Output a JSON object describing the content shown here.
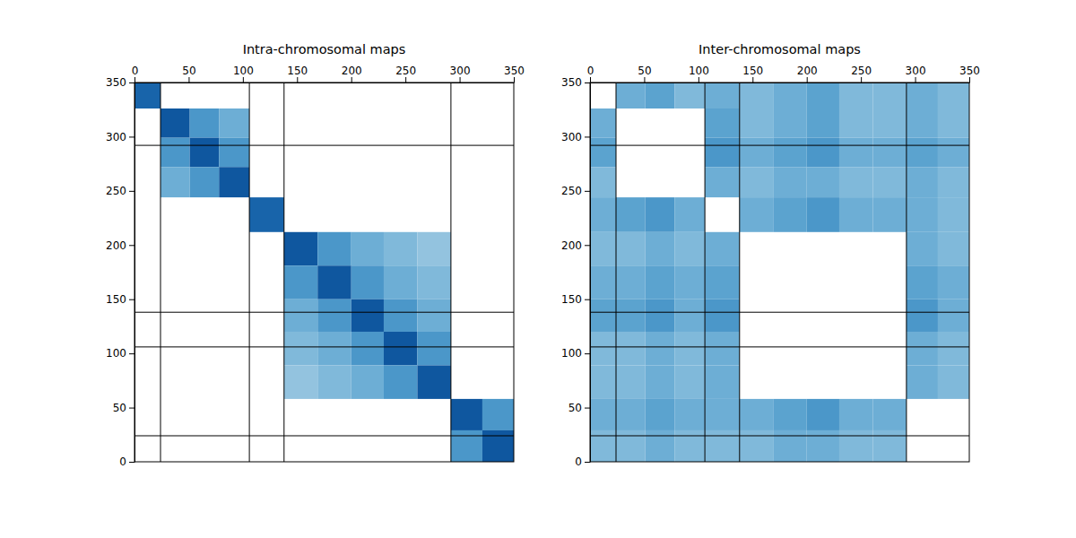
{
  "chart_data": [
    {
      "type": "heatmap",
      "title": "Intra-chromosomal maps",
      "xlim": [
        0,
        350
      ],
      "ylim": [
        0,
        350
      ],
      "xticks": [
        0,
        50,
        100,
        150,
        200,
        250,
        300,
        350
      ],
      "yticks": [
        0,
        50,
        100,
        150,
        200,
        250,
        300,
        350
      ],
      "zlim": [
        0,
        1
      ],
      "x_edges": [
        0,
        24,
        51,
        78,
        106,
        138,
        169,
        200,
        230,
        261,
        292,
        321,
        350
      ],
      "y_edges": [
        350,
        326,
        299,
        272,
        244,
        212,
        181,
        150,
        120,
        89,
        58,
        29,
        0
      ],
      "boundaries": [
        24,
        106,
        138,
        292
      ],
      "cells": [
        [
          0.8,
          null,
          null,
          null,
          null,
          null,
          null,
          null,
          null,
          null,
          null,
          null
        ],
        [
          null,
          0.85,
          0.6,
          0.5,
          null,
          null,
          null,
          null,
          null,
          null,
          null,
          null
        ],
        [
          null,
          0.6,
          0.85,
          0.6,
          null,
          null,
          null,
          null,
          null,
          null,
          null,
          null
        ],
        [
          null,
          0.5,
          0.6,
          0.85,
          null,
          null,
          null,
          null,
          null,
          null,
          null,
          null
        ],
        [
          null,
          null,
          null,
          null,
          0.8,
          null,
          null,
          null,
          null,
          null,
          null,
          null
        ],
        [
          null,
          null,
          null,
          null,
          null,
          0.85,
          0.6,
          0.5,
          0.45,
          0.4,
          null,
          null
        ],
        [
          null,
          null,
          null,
          null,
          null,
          0.6,
          0.85,
          0.6,
          0.5,
          0.45,
          null,
          null
        ],
        [
          null,
          null,
          null,
          null,
          null,
          0.5,
          0.6,
          0.85,
          0.6,
          0.5,
          null,
          null
        ],
        [
          null,
          null,
          null,
          null,
          null,
          0.45,
          0.5,
          0.6,
          0.85,
          0.6,
          null,
          null
        ],
        [
          null,
          null,
          null,
          null,
          null,
          0.4,
          0.45,
          0.5,
          0.6,
          0.85,
          null,
          null
        ],
        [
          null,
          null,
          null,
          null,
          null,
          null,
          null,
          null,
          null,
          null,
          0.85,
          0.6
        ],
        [
          null,
          null,
          null,
          null,
          null,
          null,
          null,
          null,
          null,
          null,
          0.6,
          0.85
        ]
      ]
    },
    {
      "type": "heatmap",
      "title": "Inter-chromosomal maps",
      "xlim": [
        0,
        350
      ],
      "ylim": [
        0,
        350
      ],
      "xticks": [
        0,
        50,
        100,
        150,
        200,
        250,
        300,
        350
      ],
      "yticks": [
        0,
        50,
        100,
        150,
        200,
        250,
        300,
        350
      ],
      "zlim": [
        0,
        1
      ],
      "x_edges": [
        0,
        24,
        51,
        78,
        106,
        138,
        169,
        200,
        230,
        261,
        292,
        321,
        350
      ],
      "y_edges": [
        350,
        326,
        299,
        272,
        244,
        212,
        181,
        150,
        120,
        89,
        58,
        29,
        0
      ],
      "boundaries": [
        24,
        106,
        138,
        292
      ],
      "cells": [
        [
          null,
          0.5,
          0.55,
          0.45,
          0.5,
          0.45,
          0.5,
          0.55,
          0.45,
          0.45,
          0.5,
          0.45
        ],
        [
          0.5,
          null,
          null,
          null,
          0.55,
          0.45,
          0.5,
          0.55,
          0.45,
          0.45,
          0.5,
          0.45
        ],
        [
          0.55,
          null,
          null,
          null,
          0.6,
          0.5,
          0.55,
          0.6,
          0.5,
          0.5,
          0.55,
          0.5
        ],
        [
          0.45,
          null,
          null,
          null,
          0.5,
          0.45,
          0.5,
          0.5,
          0.45,
          0.45,
          0.5,
          0.45
        ],
        [
          0.5,
          0.55,
          0.6,
          0.5,
          null,
          0.5,
          0.55,
          0.6,
          0.5,
          0.5,
          0.5,
          0.45
        ],
        [
          0.45,
          0.45,
          0.5,
          0.45,
          0.5,
          null,
          null,
          null,
          null,
          null,
          0.5,
          0.45
        ],
        [
          0.5,
          0.5,
          0.55,
          0.5,
          0.55,
          null,
          null,
          null,
          null,
          null,
          0.55,
          0.5
        ],
        [
          0.55,
          0.55,
          0.6,
          0.5,
          0.6,
          null,
          null,
          null,
          null,
          null,
          0.6,
          0.5
        ],
        [
          0.45,
          0.45,
          0.5,
          0.45,
          0.5,
          null,
          null,
          null,
          null,
          null,
          0.5,
          0.45
        ],
        [
          0.45,
          0.45,
          0.5,
          0.45,
          0.5,
          null,
          null,
          null,
          null,
          null,
          0.5,
          0.45
        ],
        [
          0.5,
          0.5,
          0.55,
          0.5,
          0.5,
          0.5,
          0.55,
          0.6,
          0.5,
          0.5,
          null,
          null
        ],
        [
          0.45,
          0.45,
          0.5,
          0.45,
          0.45,
          0.45,
          0.5,
          0.5,
          0.45,
          0.45,
          null,
          null
        ]
      ]
    }
  ]
}
